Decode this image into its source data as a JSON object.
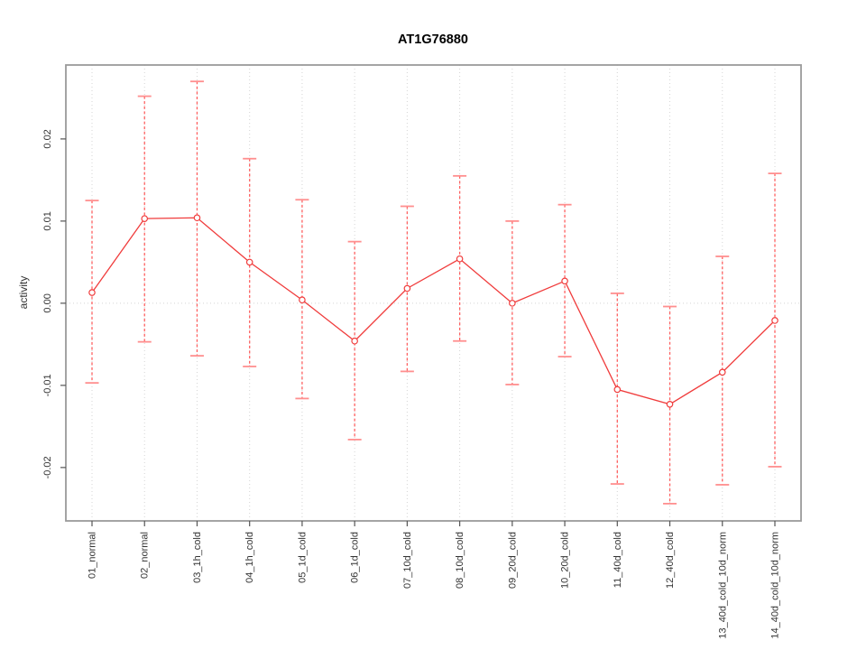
{
  "chart_data": {
    "type": "line",
    "title": "AT1G76880",
    "ylabel": "activity",
    "xlabel": "",
    "legend": "none",
    "marker": "open-circle",
    "grid": {
      "vertical": "dotted",
      "zero_line": "dotted",
      "horizontal": "off"
    },
    "categories": [
      "01_normal",
      "02_normal",
      "03_1h_cold",
      "04_1h_cold",
      "05_1d_cold",
      "06_1d_cold",
      "07_10d_cold",
      "08_10d_cold",
      "09_20d_cold",
      "10_20d_cold",
      "11_40d_cold",
      "12_40d_cold",
      "13_40d_cold_10d_norm",
      "14_40d_cold_10d_norm"
    ],
    "values": [
      0.0013,
      0.0103,
      0.0104,
      0.005,
      0.0004,
      -0.0046,
      0.0018,
      0.0054,
      0.0,
      0.0027,
      -0.0105,
      -0.0123,
      -0.0084,
      -0.0021
    ],
    "error_high": [
      0.0125,
      0.0252,
      0.027,
      0.0176,
      0.0126,
      0.0075,
      0.0118,
      0.0155,
      0.01,
      0.012,
      0.0012,
      -0.0004,
      0.0057,
      0.0158
    ],
    "error_low": [
      -0.0097,
      -0.0047,
      -0.0064,
      -0.0077,
      -0.0116,
      -0.0166,
      -0.0083,
      -0.0046,
      -0.0099,
      -0.0065,
      -0.022,
      -0.0244,
      -0.0221,
      -0.0199
    ],
    "yticks": [
      {
        "value": -0.02,
        "label": "-0.02"
      },
      {
        "value": -0.01,
        "label": "-0.01"
      },
      {
        "value": 0.0,
        "label": "0.00"
      },
      {
        "value": 0.01,
        "label": "0.01"
      },
      {
        "value": 0.02,
        "label": "0.02"
      }
    ],
    "ylim": [
      -0.0265,
      0.029
    ],
    "colors": {
      "line": "#f03c3c",
      "marker": "#f03c3c",
      "marker_fill": "#ffffff",
      "error_bar": "#ff6060",
      "error_cap": "#ff8f8f",
      "box": "#9a9a9a",
      "grid": "#d4d4d4",
      "tick": "#555555",
      "text": "#333333",
      "title": "#000000"
    }
  }
}
